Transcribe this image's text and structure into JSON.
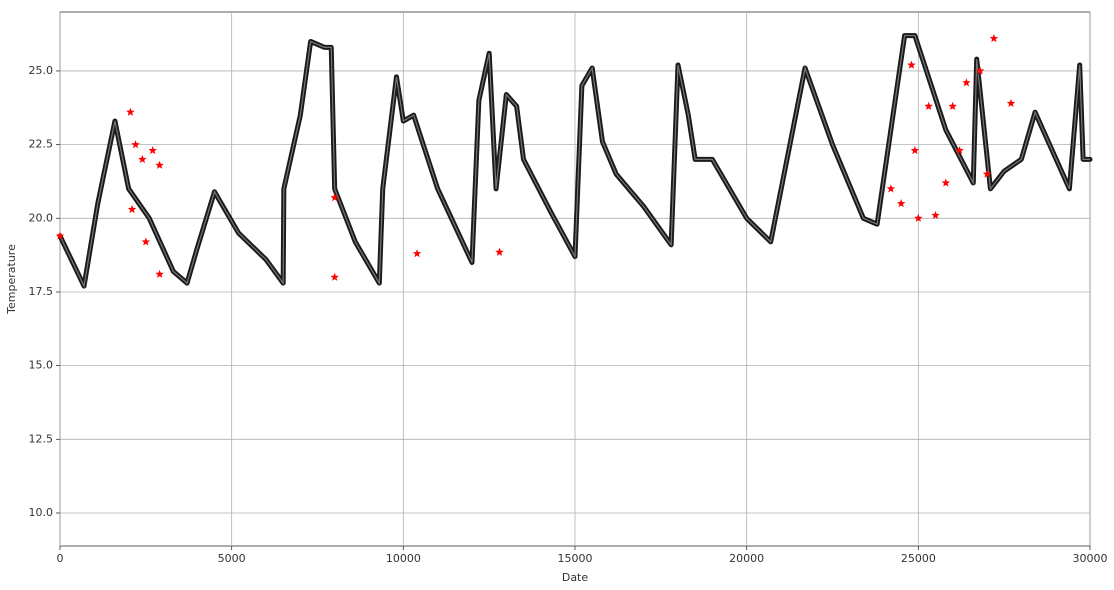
{
  "chart_data": {
    "type": "scatter",
    "xlabel": "Date",
    "ylabel": "Temperature",
    "xlim": [
      0,
      30000
    ],
    "ylim": [
      8.88,
      27.0
    ],
    "xticks": [
      0,
      5000,
      10000,
      15000,
      20000,
      25000,
      30000
    ],
    "yticks": [
      {
        "value": 10,
        "label": "10.0"
      },
      {
        "value": 12.5,
        "label": "12.5"
      },
      {
        "value": 15,
        "label": "15.0"
      },
      {
        "value": 17.5,
        "label": "17.5"
      },
      {
        "value": 20,
        "label": "20.0"
      },
      {
        "value": 22.5,
        "label": "22.5"
      },
      {
        "value": 25,
        "label": "25.0"
      }
    ],
    "grid": true,
    "series": [
      {
        "color": "#1a1a1a",
        "mode": "line",
        "x": [
          0,
          700,
          1100,
          1600,
          2000,
          2600,
          3300,
          3700,
          4000,
          4500,
          5200,
          6000,
          6500,
          6520,
          7000,
          7300,
          7700,
          7900,
          8000,
          8600,
          9300,
          9400,
          9800,
          10000,
          10300,
          11000,
          12000,
          12200,
          12500,
          12700,
          13000,
          13300,
          13500,
          14300,
          15000,
          15200,
          15500,
          15800,
          16200,
          17000,
          17800,
          18000,
          18300,
          18500,
          19000,
          20000,
          20700,
          21700,
          22500,
          23400,
          23800,
          24600,
          24900,
          25800,
          26600,
          26700,
          27100,
          27500,
          28000,
          28400,
          29400,
          29700,
          29800,
          30000
        ],
        "values": [
          19.4,
          17.7,
          20.5,
          23.3,
          21.0,
          20.0,
          18.2,
          17.8,
          19.0,
          20.9,
          19.5,
          18.6,
          17.8,
          21.0,
          23.5,
          26.0,
          25.8,
          25.8,
          21.0,
          19.2,
          17.8,
          21.0,
          24.8,
          23.3,
          23.5,
          21.0,
          18.5,
          24.0,
          25.6,
          21.0,
          24.2,
          23.8,
          22.0,
          20.2,
          18.7,
          24.5,
          25.1,
          22.6,
          21.5,
          20.4,
          19.1,
          25.2,
          23.5,
          22.0,
          22.0,
          20.0,
          19.2,
          25.1,
          22.5,
          20.0,
          19.8,
          26.2,
          26.2,
          23.0,
          21.2,
          25.4,
          21.0,
          21.6,
          22.0,
          23.6,
          21.0,
          25.2,
          22.0,
          22.0
        ]
      },
      {
        "color": "#ff0000",
        "marker": "star",
        "x": [
          0,
          2050,
          2200,
          2400,
          2700,
          2900,
          2100,
          2500,
          2900,
          8000,
          8000,
          10400,
          12800,
          24200,
          24500,
          25000,
          25500,
          25800,
          24800,
          24900,
          25300,
          26000,
          26400,
          26800,
          27200,
          26200,
          27000,
          27700
        ],
        "values": [
          19.4,
          23.6,
          22.5,
          22.0,
          22.3,
          21.8,
          20.3,
          19.2,
          18.1,
          20.7,
          18.0,
          18.8,
          18.85,
          21.0,
          20.5,
          20.0,
          20.1,
          21.2,
          25.2,
          22.3,
          23.8,
          23.8,
          24.6,
          25.0,
          26.1,
          22.3,
          21.5,
          23.9
        ]
      }
    ]
  }
}
